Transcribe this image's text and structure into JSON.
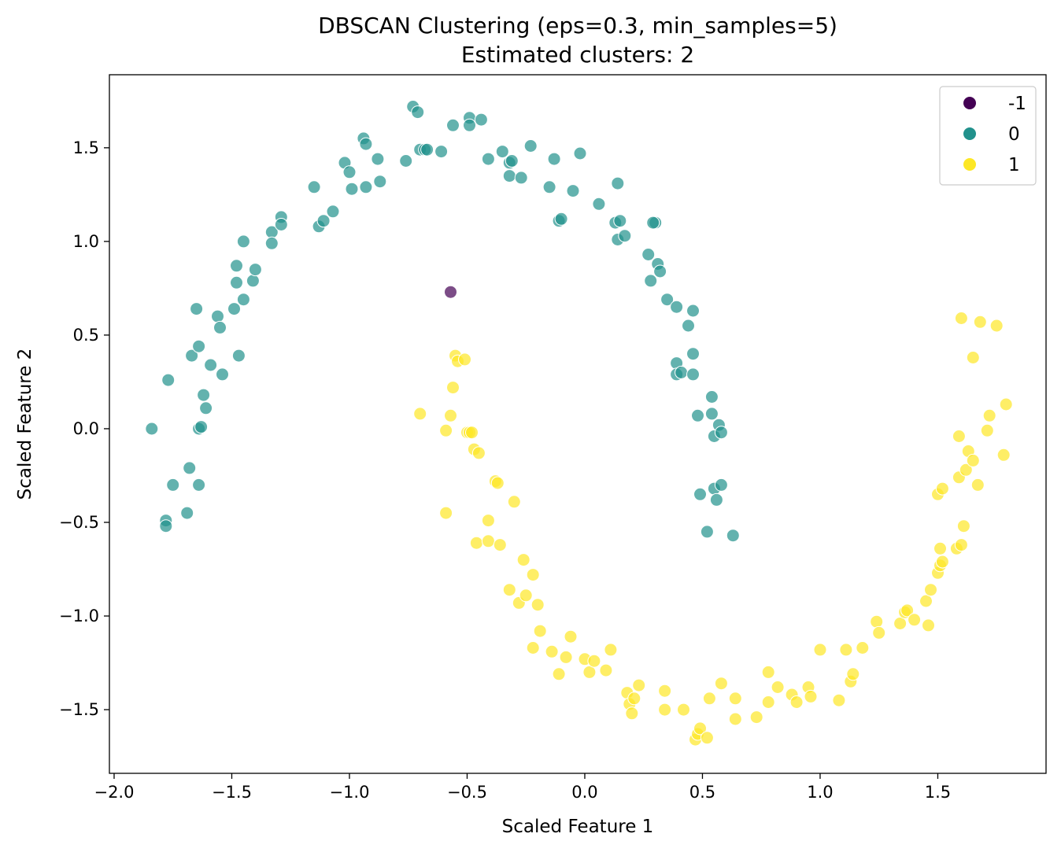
{
  "chart_data": {
    "type": "scatter",
    "title": "DBSCAN Clustering (eps=0.3, min_samples=5)",
    "subtitle": "Estimated clusters: 2",
    "xlabel": "Scaled Feature 1",
    "ylabel": "Scaled Feature 2",
    "xlim": [
      -2.02,
      1.96
    ],
    "ylim": [
      -1.84,
      1.89
    ],
    "xticks": [
      -2.0,
      -1.5,
      -1.0,
      -0.5,
      0.0,
      0.5,
      1.0,
      1.5
    ],
    "yticks": [
      -1.5,
      -1.0,
      -0.5,
      0.0,
      0.5,
      1.0,
      1.5
    ],
    "xtick_labels": [
      "−2.0",
      "−1.5",
      "−1.0",
      "−0.5",
      "0.0",
      "0.5",
      "1.0",
      "1.5"
    ],
    "ytick_labels": [
      "−1.5",
      "−1.0",
      "−0.5",
      "0.0",
      "0.5",
      "1.0",
      "1.5"
    ],
    "grid": false,
    "legend_position": "top-right",
    "series": [
      {
        "name": "-1",
        "color": "#440154",
        "points": [
          [
            -0.57,
            0.73
          ]
        ]
      },
      {
        "name": "0",
        "color": "#21918c",
        "points": [
          [
            -1.84,
            0.0
          ],
          [
            -1.77,
            0.26
          ],
          [
            -1.75,
            -0.3
          ],
          [
            -1.78,
            -0.49
          ],
          [
            -1.78,
            -0.52
          ],
          [
            -1.68,
            -0.21
          ],
          [
            -1.69,
            -0.45
          ],
          [
            -1.64,
            -0.3
          ],
          [
            -1.67,
            0.39
          ],
          [
            -1.64,
            0.44
          ],
          [
            -1.65,
            0.64
          ],
          [
            -1.62,
            0.18
          ],
          [
            -1.61,
            0.11
          ],
          [
            -1.64,
            0.0
          ],
          [
            -1.63,
            0.01
          ],
          [
            -1.59,
            0.34
          ],
          [
            -1.56,
            0.6
          ],
          [
            -1.55,
            0.54
          ],
          [
            -1.54,
            0.29
          ],
          [
            -1.49,
            0.64
          ],
          [
            -1.48,
            0.87
          ],
          [
            -1.48,
            0.78
          ],
          [
            -1.47,
            0.39
          ],
          [
            -1.45,
            0.69
          ],
          [
            -1.45,
            1.0
          ],
          [
            -1.41,
            0.79
          ],
          [
            -1.4,
            0.85
          ],
          [
            -1.33,
            1.05
          ],
          [
            -1.33,
            0.99
          ],
          [
            -1.29,
            1.13
          ],
          [
            -1.29,
            1.09
          ],
          [
            -1.15,
            1.29
          ],
          [
            -1.13,
            1.08
          ],
          [
            -1.11,
            1.11
          ],
          [
            -1.07,
            1.16
          ],
          [
            -1.02,
            1.42
          ],
          [
            -1.0,
            1.37
          ],
          [
            -0.99,
            1.28
          ],
          [
            -0.94,
            1.55
          ],
          [
            -0.93,
            1.52
          ],
          [
            -0.93,
            1.29
          ],
          [
            -0.88,
            1.44
          ],
          [
            -0.87,
            1.32
          ],
          [
            -0.76,
            1.43
          ],
          [
            -0.73,
            1.72
          ],
          [
            -0.71,
            1.69
          ],
          [
            -0.7,
            1.49
          ],
          [
            -0.68,
            1.49
          ],
          [
            -0.67,
            1.49
          ],
          [
            -0.61,
            1.48
          ],
          [
            -0.56,
            1.62
          ],
          [
            -0.49,
            1.66
          ],
          [
            -0.49,
            1.62
          ],
          [
            -0.44,
            1.65
          ],
          [
            -0.41,
            1.44
          ],
          [
            -0.35,
            1.48
          ],
          [
            -0.32,
            1.42
          ],
          [
            -0.31,
            1.43
          ],
          [
            -0.32,
            1.35
          ],
          [
            -0.27,
            1.34
          ],
          [
            -0.23,
            1.51
          ],
          [
            -0.15,
            1.29
          ],
          [
            -0.13,
            1.44
          ],
          [
            -0.11,
            1.11
          ],
          [
            -0.1,
            1.12
          ],
          [
            -0.05,
            1.27
          ],
          [
            -0.02,
            1.47
          ],
          [
            0.06,
            1.2
          ],
          [
            0.13,
            1.1
          ],
          [
            0.14,
            1.01
          ],
          [
            0.15,
            1.11
          ],
          [
            0.14,
            1.31
          ],
          [
            0.17,
            1.03
          ],
          [
            0.27,
            0.93
          ],
          [
            0.28,
            0.79
          ],
          [
            0.3,
            1.1
          ],
          [
            0.29,
            1.1
          ],
          [
            0.31,
            0.88
          ],
          [
            0.32,
            0.84
          ],
          [
            0.35,
            0.69
          ],
          [
            0.39,
            0.65
          ],
          [
            0.39,
            0.35
          ],
          [
            0.39,
            0.29
          ],
          [
            0.41,
            0.3
          ],
          [
            0.44,
            0.55
          ],
          [
            0.46,
            0.63
          ],
          [
            0.46,
            0.4
          ],
          [
            0.46,
            0.29
          ],
          [
            0.48,
            0.07
          ],
          [
            0.49,
            -0.35
          ],
          [
            0.52,
            -0.55
          ],
          [
            0.54,
            0.17
          ],
          [
            0.54,
            0.08
          ],
          [
            0.55,
            -0.04
          ],
          [
            0.55,
            -0.32
          ],
          [
            0.56,
            -0.38
          ],
          [
            0.57,
            0.02
          ],
          [
            0.58,
            -0.02
          ],
          [
            0.58,
            -0.3
          ],
          [
            0.63,
            -0.57
          ]
        ]
      },
      {
        "name": "1",
        "color": "#fde725",
        "points": [
          [
            -0.7,
            0.08
          ],
          [
            -0.59,
            -0.45
          ],
          [
            -0.59,
            -0.01
          ],
          [
            -0.57,
            0.07
          ],
          [
            -0.56,
            0.22
          ],
          [
            -0.55,
            0.39
          ],
          [
            -0.54,
            0.36
          ],
          [
            -0.51,
            0.37
          ],
          [
            -0.5,
            -0.02
          ],
          [
            -0.49,
            -0.02
          ],
          [
            -0.48,
            -0.02
          ],
          [
            -0.47,
            -0.11
          ],
          [
            -0.45,
            -0.13
          ],
          [
            -0.46,
            -0.61
          ],
          [
            -0.41,
            -0.49
          ],
          [
            -0.41,
            -0.6
          ],
          [
            -0.38,
            -0.28
          ],
          [
            -0.37,
            -0.29
          ],
          [
            -0.36,
            -0.62
          ],
          [
            -0.3,
            -0.39
          ],
          [
            -0.32,
            -0.86
          ],
          [
            -0.28,
            -0.93
          ],
          [
            -0.26,
            -0.7
          ],
          [
            -0.25,
            -0.89
          ],
          [
            -0.22,
            -0.78
          ],
          [
            -0.22,
            -1.17
          ],
          [
            -0.2,
            -0.94
          ],
          [
            -0.19,
            -1.08
          ],
          [
            -0.14,
            -1.19
          ],
          [
            -0.11,
            -1.31
          ],
          [
            -0.08,
            -1.22
          ],
          [
            -0.06,
            -1.11
          ],
          [
            0.0,
            -1.23
          ],
          [
            0.02,
            -1.3
          ],
          [
            0.04,
            -1.24
          ],
          [
            0.09,
            -1.29
          ],
          [
            0.11,
            -1.18
          ],
          [
            0.18,
            -1.41
          ],
          [
            0.19,
            -1.47
          ],
          [
            0.2,
            -1.52
          ],
          [
            0.21,
            -1.44
          ],
          [
            0.23,
            -1.37
          ],
          [
            0.34,
            -1.4
          ],
          [
            0.34,
            -1.5
          ],
          [
            0.42,
            -1.5
          ],
          [
            0.47,
            -1.66
          ],
          [
            0.48,
            -1.63
          ],
          [
            0.49,
            -1.6
          ],
          [
            0.52,
            -1.65
          ],
          [
            0.53,
            -1.44
          ],
          [
            0.58,
            -1.36
          ],
          [
            0.64,
            -1.44
          ],
          [
            0.64,
            -1.55
          ],
          [
            0.73,
            -1.54
          ],
          [
            0.78,
            -1.46
          ],
          [
            0.78,
            -1.3
          ],
          [
            0.82,
            -1.38
          ],
          [
            0.88,
            -1.42
          ],
          [
            0.9,
            -1.46
          ],
          [
            0.95,
            -1.38
          ],
          [
            0.96,
            -1.43
          ],
          [
            1.0,
            -1.18
          ],
          [
            1.08,
            -1.45
          ],
          [
            1.11,
            -1.18
          ],
          [
            1.13,
            -1.35
          ],
          [
            1.14,
            -1.31
          ],
          [
            1.18,
            -1.17
          ],
          [
            1.24,
            -1.03
          ],
          [
            1.25,
            -1.09
          ],
          [
            1.34,
            -1.04
          ],
          [
            1.36,
            -0.98
          ],
          [
            1.37,
            -0.97
          ],
          [
            1.4,
            -1.02
          ],
          [
            1.45,
            -0.92
          ],
          [
            1.47,
            -0.86
          ],
          [
            1.46,
            -1.05
          ],
          [
            1.5,
            -0.77
          ],
          [
            1.51,
            -0.73
          ],
          [
            1.51,
            -0.64
          ],
          [
            1.52,
            -0.71
          ],
          [
            1.5,
            -0.35
          ],
          [
            1.52,
            -0.32
          ],
          [
            1.58,
            -0.64
          ],
          [
            1.59,
            -0.26
          ],
          [
            1.6,
            -0.62
          ],
          [
            1.61,
            -0.52
          ],
          [
            1.62,
            -0.22
          ],
          [
            1.63,
            -0.12
          ],
          [
            1.65,
            -0.17
          ],
          [
            1.59,
            -0.04
          ],
          [
            1.67,
            -0.3
          ],
          [
            1.71,
            -0.01
          ],
          [
            1.72,
            0.07
          ],
          [
            1.78,
            -0.14
          ],
          [
            1.79,
            0.13
          ],
          [
            1.6,
            0.59
          ],
          [
            1.65,
            0.38
          ],
          [
            1.68,
            0.57
          ],
          [
            1.75,
            0.55
          ]
        ]
      }
    ]
  }
}
